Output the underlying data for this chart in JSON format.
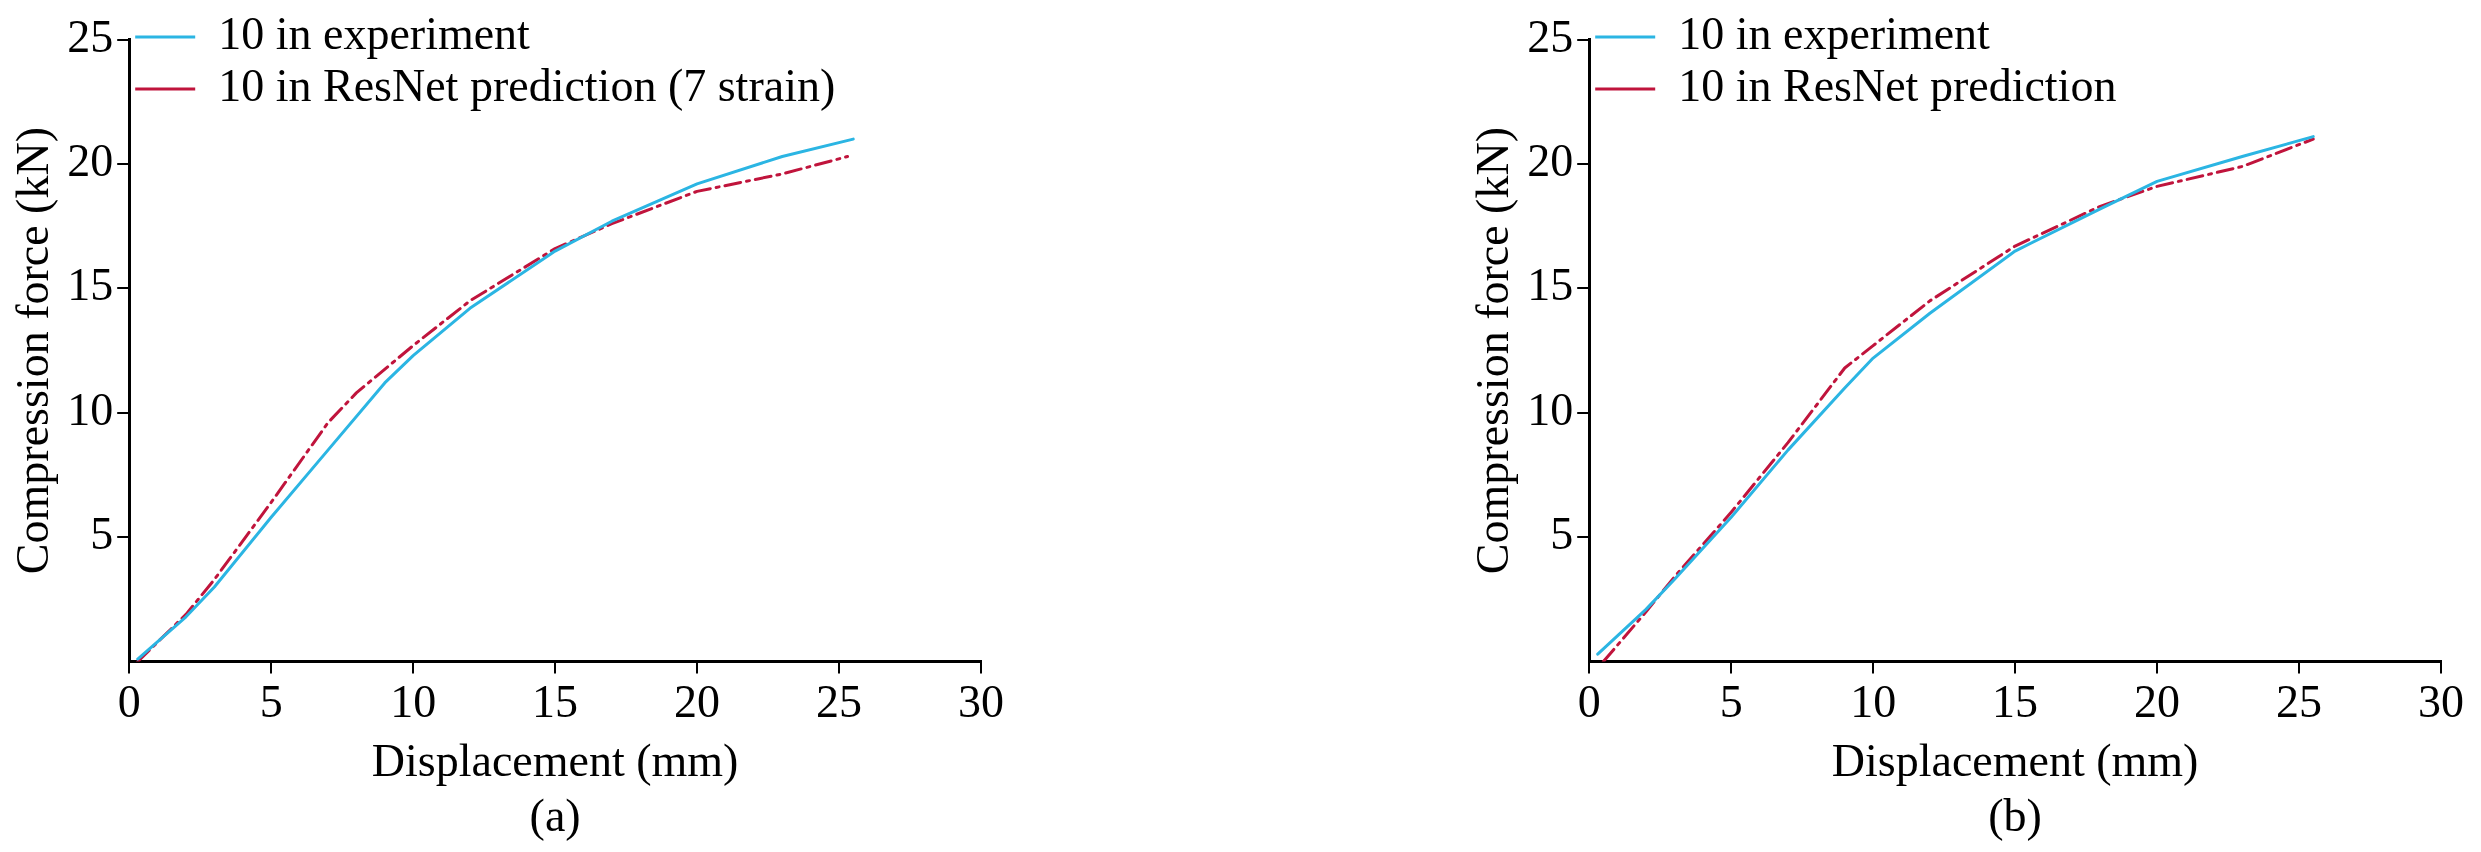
{
  "chart_data": [
    {
      "type": "line",
      "xlabel": "Displacement (mm)",
      "ylabel": "Compression force (kN)",
      "annotations": [
        "(a)"
      ],
      "xlim": [
        0,
        30
      ],
      "ylim": [
        0,
        25
      ],
      "xticks": [
        0,
        5,
        10,
        15,
        20,
        25,
        30
      ],
      "yticks": [
        5,
        10,
        15,
        20,
        25
      ],
      "grid": false,
      "legend": "top left",
      "marker": "none",
      "series": [
        {
          "name": "10 in experiment",
          "color": "#2bb5e3",
          "line_style": "solid",
          "x": [
            0.3,
            2,
            3,
            5,
            7,
            9,
            10,
            12,
            15,
            17,
            20,
            23,
            25.5
          ],
          "values": [
            0.1,
            1.8,
            3.0,
            5.8,
            8.5,
            11.2,
            12.3,
            14.2,
            16.5,
            17.7,
            19.2,
            20.3,
            21.0
          ]
        },
        {
          "name": "10 in ResNet prediction (7 strain)",
          "color": "#c0143c",
          "line_style": "dashed",
          "x": [
            0.3,
            2,
            3,
            5,
            7,
            8,
            10,
            12,
            15,
            17,
            20,
            23,
            25.3
          ],
          "values": [
            0,
            1.9,
            3.3,
            6.4,
            9.6,
            10.8,
            12.7,
            14.5,
            16.6,
            17.6,
            18.9,
            19.6,
            20.3
          ]
        }
      ]
    },
    {
      "type": "line",
      "xlabel": "Displacement (mm)",
      "ylabel": "Compression force (kN)",
      "annotations": [
        "(b)"
      ],
      "xlim": [
        0,
        30
      ],
      "ylim": [
        0,
        25
      ],
      "xticks": [
        0,
        5,
        10,
        15,
        20,
        25,
        30
      ],
      "yticks": [
        5,
        10,
        15,
        20,
        25
      ],
      "grid": false,
      "legend": "top left",
      "marker": "none",
      "series": [
        {
          "name": "10 in experiment",
          "color": "#2bb5e3",
          "line_style": "solid",
          "x": [
            0.3,
            2,
            3,
            5,
            7,
            9,
            10,
            12,
            15,
            18,
            20,
            23,
            25.5
          ],
          "values": [
            0.3,
            2.1,
            3.3,
            5.8,
            8.5,
            11.0,
            12.2,
            14.0,
            16.5,
            18.2,
            19.3,
            20.3,
            21.1
          ]
        },
        {
          "name": "10 in ResNet prediction",
          "color": "#c0143c",
          "line_style": "dashed",
          "x": [
            0.5,
            2,
            3,
            5,
            7,
            9,
            10,
            12,
            15,
            18,
            20,
            23,
            25.5
          ],
          "values": [
            0,
            2.0,
            3.4,
            6.0,
            8.8,
            11.8,
            12.7,
            14.5,
            16.7,
            18.3,
            19.1,
            19.9,
            21.0
          ]
        }
      ]
    }
  ]
}
